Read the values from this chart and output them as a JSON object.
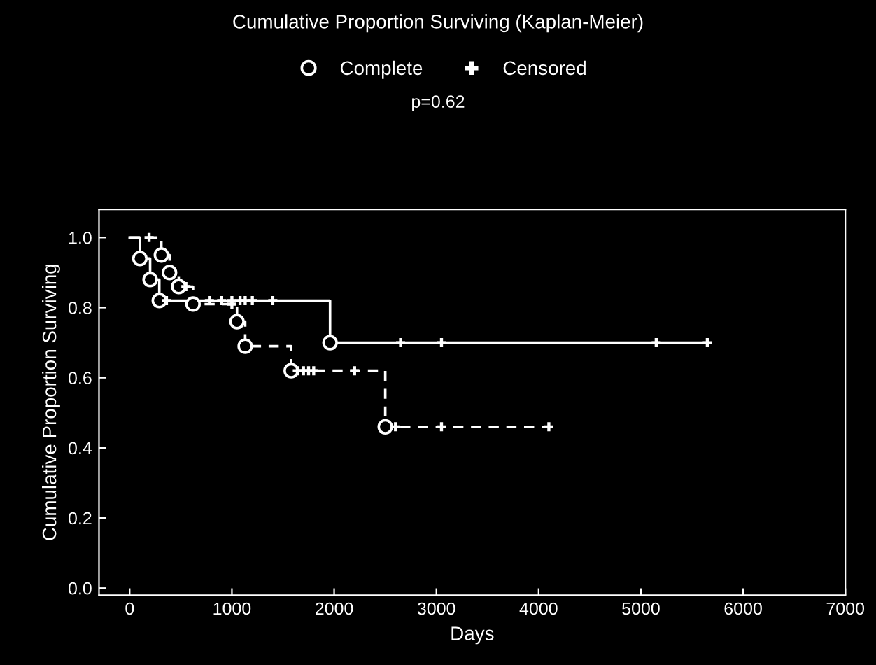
{
  "chart_data": {
    "type": "step",
    "title": "Cumulative Proportion Surviving (Kaplan-Meier)",
    "xlabel": "Days",
    "ylabel": "Cumulative Proportion Surviving",
    "annotations": [
      "p=0.62"
    ],
    "xlim": [
      -300,
      7000
    ],
    "xticks": [
      0,
      1000,
      2000,
      3000,
      4000,
      5000,
      6000,
      7000
    ],
    "ylim": [
      -0.02,
      1.08
    ],
    "yticks": [
      {
        "value": 0,
        "label": "0.0"
      },
      {
        "value": 0.2,
        "label": "0.2"
      },
      {
        "value": 0.4,
        "label": "0.4"
      },
      {
        "value": 0.6,
        "label": "0.6"
      },
      {
        "value": 0.8,
        "label": "0.8"
      },
      {
        "value": 1,
        "label": "1.0"
      }
    ],
    "grid": false,
    "legend": "top",
    "series": [
      {
        "color": "#ffffff",
        "line_style": "solid",
        "marker": "none",
        "x": [
          0,
          100,
          200,
          290,
          1960,
          5650
        ],
        "values": [
          1.0,
          0.94,
          0.88,
          0.82,
          0.7,
          0.7
        ]
      },
      {
        "color": "#ffffff",
        "line_style": "dashed",
        "marker": "none",
        "x": [
          0,
          310,
          390,
          480,
          620,
          1050,
          1130,
          1580,
          2500,
          4100
        ],
        "values": [
          1.0,
          0.95,
          0.9,
          0.86,
          0.81,
          0.76,
          0.69,
          0.62,
          0.46,
          0.46
        ]
      },
      {
        "type": "scatter",
        "name": "Complete",
        "color": "#ffffff",
        "marker": "circle",
        "x": [
          100,
          200,
          290,
          310,
          390,
          480,
          620,
          1050,
          1130,
          1580,
          1960,
          2500
        ],
        "values": [
          0.94,
          0.88,
          0.82,
          0.95,
          0.9,
          0.86,
          0.81,
          0.76,
          0.69,
          0.62,
          0.7,
          0.46
        ]
      },
      {
        "type": "scatter",
        "name": "Censored",
        "color": "#ffffff",
        "marker": "cross",
        "x": [
          190,
          360,
          550,
          780,
          900,
          1000,
          1080,
          1130,
          1200,
          1400,
          1000,
          1640,
          1700,
          1750,
          1800,
          2200,
          2650,
          3050,
          5150,
          5650,
          2600,
          3050,
          4100
        ],
        "values": [
          1.0,
          0.82,
          0.86,
          0.82,
          0.82,
          0.82,
          0.82,
          0.82,
          0.82,
          0.82,
          0.81,
          0.62,
          0.62,
          0.62,
          0.62,
          0.62,
          0.7,
          0.7,
          0.7,
          0.7,
          0.46,
          0.46,
          0.46
        ]
      }
    ]
  }
}
